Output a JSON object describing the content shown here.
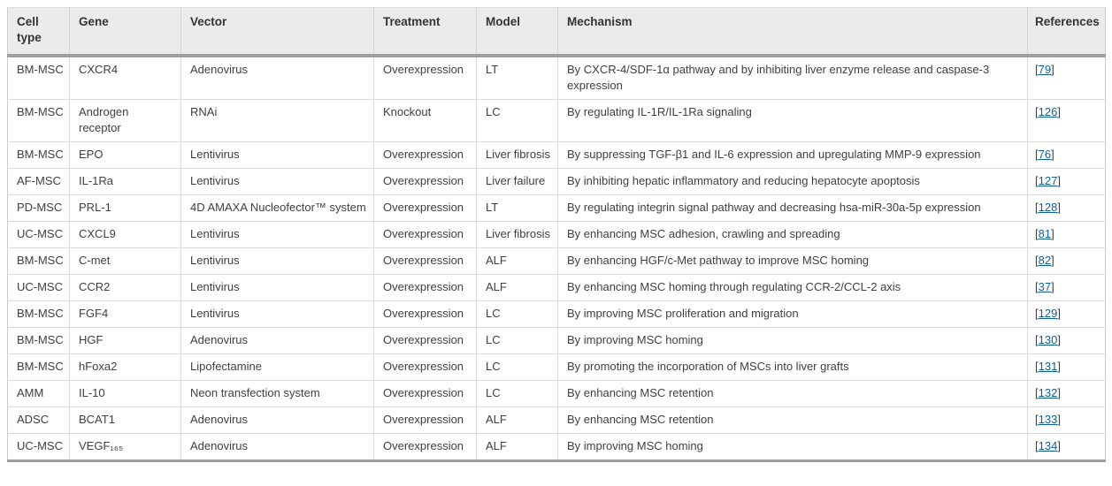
{
  "colors": {
    "header_background": "#ebebeb",
    "thick_rule": "#9e9e9e",
    "cell_border": "#dadada",
    "body_text": "#3f3f3f",
    "header_text": "#333333",
    "link_blue": "#0f5e9c"
  },
  "table": {
    "ref_brackets": {
      "open": "[",
      "close": "]"
    },
    "columns": [
      {
        "key": "cell_type",
        "label": "Cell type"
      },
      {
        "key": "gene",
        "label": "Gene"
      },
      {
        "key": "vector",
        "label": "Vector"
      },
      {
        "key": "treatment",
        "label": "Treatment"
      },
      {
        "key": "model",
        "label": "Model"
      },
      {
        "key": "mechanism",
        "label": "Mechanism"
      },
      {
        "key": "references",
        "label": "References"
      }
    ],
    "rows": [
      {
        "cell_type": "BM-MSC",
        "gene": "CXCR4",
        "vector": "Adenovirus",
        "treatment": "Overexpression",
        "model": "LT",
        "mechanism": "By CXCR-4/SDF-1α pathway and by inhibiting liver enzyme release and caspase-3 expression",
        "reference": "79"
      },
      {
        "cell_type": "BM-MSC",
        "gene": "Androgen receptor",
        "vector": "RNAi",
        "treatment": "Knockout",
        "model": "LC",
        "mechanism": "By regulating IL-1R/IL-1Ra signaling",
        "reference": "126"
      },
      {
        "cell_type": "BM-MSC",
        "gene": "EPO",
        "vector": "Lentivirus",
        "treatment": "Overexpression",
        "model": "Liver fibrosis",
        "mechanism": "By suppressing TGF-β1 and IL-6 expression and upregulating MMP-9 expression",
        "reference": "76"
      },
      {
        "cell_type": "AF-MSC",
        "gene": "IL-1Ra",
        "vector": "Lentivirus",
        "treatment": "Overexpression",
        "model": "Liver failure",
        "mechanism": "By inhibiting hepatic inflammatory and reducing hepatocyte apoptosis",
        "reference": "127"
      },
      {
        "cell_type": "PD-MSC",
        "gene": "PRL-1",
        "vector": "4D AMAXA Nucleofector™ system",
        "treatment": "Overexpression",
        "model": "LT",
        "mechanism": "By regulating integrin signal pathway and decreasing hsa-miR-30a-5p expression",
        "reference": "128"
      },
      {
        "cell_type": "UC-MSC",
        "gene": "CXCL9",
        "vector": "Lentivirus",
        "treatment": "Overexpression",
        "model": "Liver fibrosis",
        "mechanism": "By enhancing MSC adhesion, crawling and spreading",
        "reference": "81"
      },
      {
        "cell_type": "BM-MSC",
        "gene": "C-met",
        "vector": "Lentivirus",
        "treatment": "Overexpression",
        "model": "ALF",
        "mechanism": "By enhancing HGF/c-Met pathway to improve MSC homing",
        "reference": "82"
      },
      {
        "cell_type": "UC-MSC",
        "gene": "CCR2",
        "vector": "Lentivirus",
        "treatment": "Overexpression",
        "model": "ALF",
        "mechanism": "By enhancing MSC homing through regulating CCR-2/CCL-2 axis",
        "reference": "37"
      },
      {
        "cell_type": "BM-MSC",
        "gene": "FGF4",
        "vector": "Lentivirus",
        "treatment": "Overexpression",
        "model": "LC",
        "mechanism": "By improving MSC proliferation and migration",
        "reference": "129"
      },
      {
        "cell_type": "BM-MSC",
        "gene": "HGF",
        "vector": "Adenovirus",
        "treatment": "Overexpression",
        "model": "LC",
        "mechanism": "By improving MSC homing",
        "reference": "130"
      },
      {
        "cell_type": "BM-MSC",
        "gene": "hFoxa2",
        "vector": "Lipofectamine",
        "treatment": "Overexpression",
        "model": "LC",
        "mechanism": "By promoting the incorporation of MSCs into liver grafts",
        "reference": "131"
      },
      {
        "cell_type": "AMM",
        "gene": "IL-10",
        "vector": "Neon transfection system",
        "treatment": "Overexpression",
        "model": "LC",
        "mechanism": "By enhancing MSC retention",
        "reference": "132"
      },
      {
        "cell_type": "ADSC",
        "gene": "BCAT1",
        "vector": "Adenovirus",
        "treatment": "Overexpression",
        "model": "ALF",
        "mechanism": "By enhancing MSC retention",
        "reference": "133"
      },
      {
        "cell_type": "UC-MSC",
        "gene": "VEGF₁₆₅",
        "vector": "Adenovirus",
        "treatment": "Overexpression",
        "model": "ALF",
        "mechanism": "By improving MSC homing",
        "reference": "134"
      }
    ]
  }
}
